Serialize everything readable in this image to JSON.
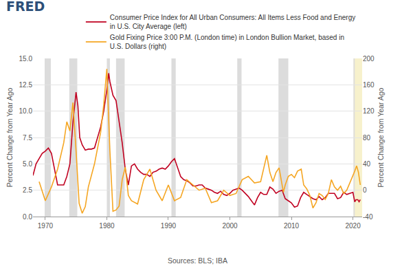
{
  "chart_data": {
    "type": "line",
    "logo": "FRED",
    "source": "Sources: BLS; IBA",
    "legend": "top",
    "grid": true,
    "xlim": [
      1968,
      2021.5
    ],
    "xticks": [
      1970,
      1980,
      1990,
      2000,
      2010,
      2020
    ],
    "ylim": [
      0,
      15
    ],
    "yticks": [
      {
        "value": 0,
        "label": "0.0"
      },
      {
        "value": 2.5,
        "label": "2.5"
      },
      {
        "value": 5,
        "label": "5.0"
      },
      {
        "value": 7.5,
        "label": "7.5"
      },
      {
        "value": 10,
        "label": "10.0"
      },
      {
        "value": 12.5,
        "label": "12.5"
      },
      {
        "value": 15,
        "label": "15.0"
      }
    ],
    "y2lim": [
      -40,
      200
    ],
    "y2ticks": [
      -40,
      0,
      40,
      80,
      120,
      160,
      200
    ],
    "ylabel": "Percent Change from Year Ago",
    "y2label": "Percent Change from Year Ago",
    "recessions": [
      [
        1969.9,
        1970.9
      ],
      [
        1973.9,
        1975.2
      ],
      [
        1980.0,
        1980.5
      ],
      [
        1981.5,
        1982.9
      ],
      [
        1990.5,
        1991.2
      ],
      [
        2001.2,
        2001.9
      ],
      [
        2007.9,
        2009.5
      ],
      [
        2020.1,
        2020.3
      ]
    ],
    "highlight": [
      2020.1,
      2021.5
    ],
    "series": [
      {
        "name": "Consumer Price Index for All Urban Consumers: All Items Less Food and Energy in U.S. City Average (left)",
        "color": "#c00020",
        "axis": "y",
        "x": [
          1968,
          1968.5,
          1969,
          1969.5,
          1970,
          1970.5,
          1971,
          1971.5,
          1972,
          1972.5,
          1973,
          1973.5,
          1974,
          1974.5,
          1975,
          1975.3,
          1975.6,
          1976,
          1976.5,
          1977,
          1977.5,
          1978,
          1978.5,
          1979,
          1979.5,
          1980,
          1980.3,
          1980.5,
          1981,
          1981.5,
          1982,
          1982.5,
          1983,
          1983.5,
          1984,
          1984.5,
          1985,
          1985.5,
          1986,
          1986.5,
          1987,
          1987.5,
          1988,
          1988.5,
          1989,
          1989.5,
          1990,
          1990.5,
          1991,
          1991.5,
          1992,
          1992.5,
          1993,
          1993.5,
          1994,
          1994.5,
          1995,
          1995.5,
          1996,
          1996.5,
          1997,
          1997.5,
          1998,
          1998.5,
          1999,
          1999.5,
          2000,
          2000.5,
          2001,
          2001.5,
          2002,
          2002.5,
          2003,
          2003.5,
          2004,
          2004.5,
          2005,
          2005.5,
          2006,
          2006.5,
          2007,
          2007.5,
          2008,
          2008.5,
          2009,
          2009.5,
          2010,
          2010.5,
          2011,
          2011.5,
          2012,
          2012.5,
          2013,
          2013.5,
          2014,
          2014.5,
          2015,
          2015.5,
          2016,
          2016.5,
          2017,
          2017.5,
          2018,
          2018.5,
          2019,
          2019.5,
          2020,
          2020.3,
          2020.5,
          2020.8,
          2021,
          2021.2
        ],
        "values": [
          3.9,
          5.0,
          5.5,
          6.0,
          6.2,
          6.5,
          6.0,
          4.5,
          3.0,
          3.0,
          3.0,
          3.8,
          5.0,
          9.0,
          11.8,
          10.5,
          7.5,
          6.8,
          6.3,
          6.4,
          6.4,
          6.5,
          7.5,
          8.5,
          10.0,
          12.0,
          13.6,
          12.8,
          11.5,
          11.0,
          9.0,
          7.0,
          4.5,
          3.0,
          4.8,
          5.0,
          4.5,
          4.2,
          4.0,
          4.0,
          3.8,
          4.2,
          4.3,
          4.5,
          4.6,
          4.5,
          4.8,
          5.2,
          5.5,
          4.6,
          3.8,
          3.5,
          3.4,
          3.2,
          2.9,
          2.9,
          3.0,
          3.0,
          2.7,
          2.6,
          2.5,
          2.3,
          2.2,
          2.4,
          2.1,
          2.0,
          2.2,
          2.5,
          2.6,
          2.7,
          2.5,
          2.2,
          1.9,
          1.5,
          1.1,
          1.8,
          2.3,
          2.1,
          2.1,
          2.8,
          2.6,
          2.2,
          2.4,
          2.5,
          1.7,
          1.5,
          1.3,
          0.9,
          1.0,
          1.8,
          2.3,
          2.1,
          1.9,
          1.7,
          1.6,
          1.9,
          1.6,
          1.8,
          2.2,
          2.2,
          2.2,
          1.7,
          1.8,
          2.3,
          2.1,
          2.2,
          2.3,
          1.4,
          1.6,
          1.6,
          1.4,
          1.6
        ]
      },
      {
        "name": "Gold Fixing Price 3:00 P.M. (London time) in London Bullion Market, based in U.S. Dollars (right)",
        "color": "#f5a623",
        "axis": "y2",
        "x": [
          1969,
          1970,
          1971,
          1972,
          1973,
          1973.5,
          1974,
          1974.5,
          1975,
          1975.5,
          1976,
          1976.5,
          1977,
          1978,
          1979,
          1979.5,
          1980,
          1980.5,
          1981,
          1981.5,
          1982,
          1982.5,
          1983,
          1983.5,
          1984,
          1985,
          1986,
          1987,
          1988,
          1989,
          1990,
          1991,
          1992,
          1993,
          1994,
          1995,
          1996,
          1997,
          1998,
          1999,
          2000,
          2001,
          2002,
          2003,
          2004,
          2005,
          2006,
          2006.5,
          2007,
          2007.5,
          2008,
          2008.7,
          2009,
          2009.5,
          2010,
          2010.5,
          2011,
          2011.6,
          2012,
          2012.5,
          2013,
          2013.5,
          2014,
          2014.5,
          2015,
          2015.5,
          2016,
          2016.5,
          2017,
          2017.5,
          2018,
          2018.5,
          2019,
          2019.5,
          2020,
          2020.3,
          2020.6,
          2020.9,
          2021.2
        ],
        "values": [
          13,
          -16,
          5,
          32,
          72,
          104,
          90,
          133,
          60,
          -20,
          -35,
          -25,
          5,
          40,
          88,
          130,
          184,
          60,
          -32,
          -30,
          -24,
          16,
          35,
          -8,
          -16,
          -21,
          16,
          32,
          0,
          -16,
          8,
          -16,
          -11,
          16,
          8,
          0,
          3,
          -19,
          -16,
          0,
          -8,
          -5,
          16,
          21,
          11,
          13,
          53,
          27,
          13,
          27,
          34,
          -3,
          8,
          21,
          24,
          19,
          29,
          32,
          8,
          2,
          -8,
          -27,
          -19,
          -5,
          -8,
          -14,
          -5,
          16,
          5,
          0,
          6,
          -5,
          0,
          11,
          21,
          29,
          37,
          27,
          8
        ]
      }
    ]
  }
}
